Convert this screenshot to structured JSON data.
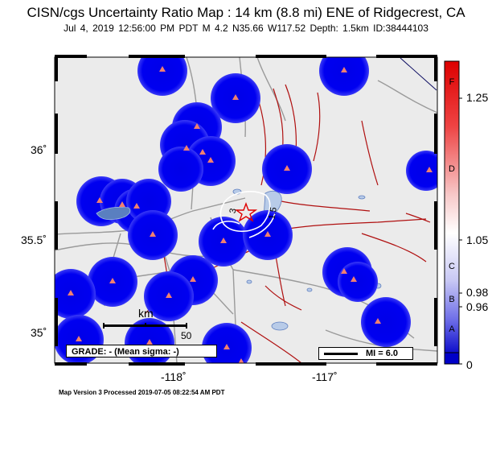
{
  "title": "CISN/cgs Uncertainty Ratio Map : 14 km (8.8 mi) ENE of Ridgecrest, CA",
  "subtitle": "Jul  4, 2019 12:56:00 PM PDT   M 4.2   N35.66 W117.52   Depth: 1.5km   ID:38444103",
  "footer": "Map Version 3 Processed 2019-07-05 08:22:54 AM PDT",
  "axes": {
    "y_ticks": [
      "36",
      "35.5",
      "35"
    ],
    "x_ticks": [
      "-118",
      "-117"
    ]
  },
  "grade_box": "GRADE: - (Mean sigma: -)",
  "mi_legend": "MI = 6.0",
  "scale_bar": {
    "unit": "km",
    "tick_label": "50"
  },
  "contour_labels": [
    "3",
    "1.5"
  ],
  "colorbar": {
    "value_labels": [
      "1.25",
      "1.05",
      "0.98",
      "0.96",
      "0"
    ],
    "grade_letters": [
      "F",
      "D",
      "C",
      "B",
      "A"
    ],
    "colors": {
      "top": "#e00000",
      "mid": "#ffffff",
      "bottom": "#0000c8"
    }
  },
  "colors": {
    "station_disk": "#0b0bf0",
    "station_marker": "#f08070",
    "fault": "#b01010",
    "road": "#9a9a9a",
    "land": "#ebebeb",
    "epicenter": "#e00000"
  },
  "icons": {
    "epicenter": "star-icon",
    "station": "triangle-icon"
  }
}
